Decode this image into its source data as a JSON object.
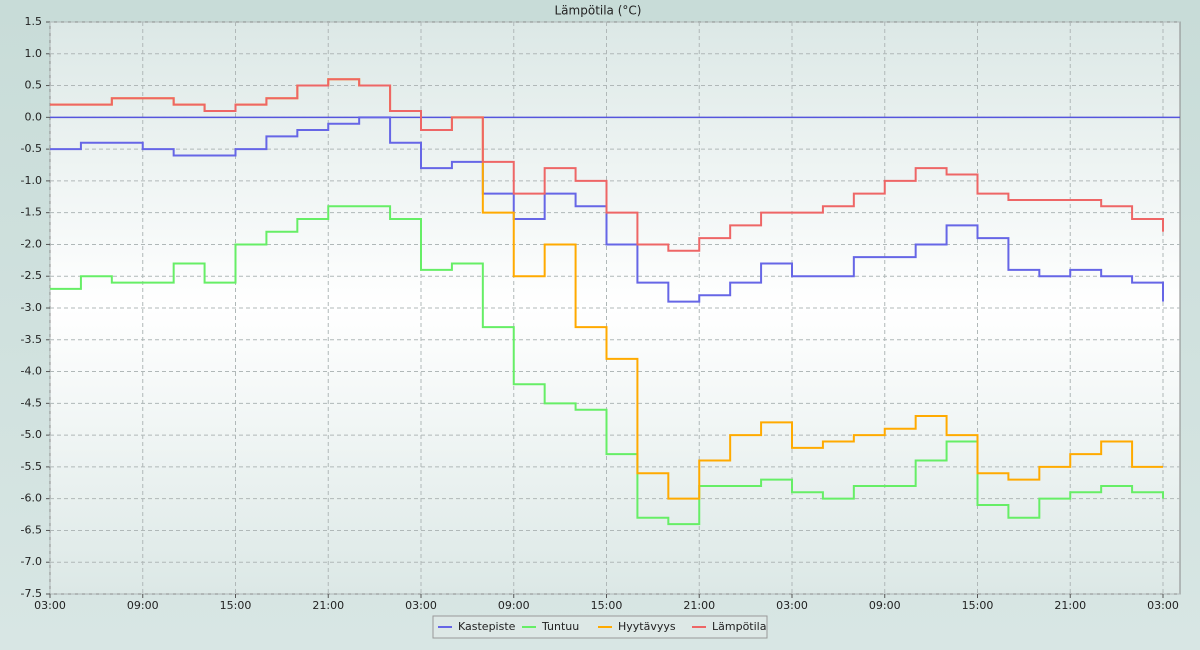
{
  "chart_data": {
    "type": "line",
    "step": true,
    "title": "Lämpötila (°C)",
    "x": [
      0,
      2,
      4,
      6,
      8,
      10,
      12,
      14,
      16,
      18,
      20,
      22,
      24,
      26,
      28,
      30,
      32,
      34,
      36,
      38,
      40,
      42,
      44,
      46,
      48,
      50,
      52,
      54,
      56,
      58,
      60,
      62,
      64,
      66,
      68,
      70,
      72
    ],
    "xlim": [
      0,
      73.1
    ],
    "xticks": [
      {
        "value": 0,
        "label": "03:00"
      },
      {
        "value": 6,
        "label": "09:00"
      },
      {
        "value": 12,
        "label": "15:00"
      },
      {
        "value": 18,
        "label": "21:00"
      },
      {
        "value": 24,
        "label": "03:00"
      },
      {
        "value": 30,
        "label": "09:00"
      },
      {
        "value": 36,
        "label": "15:00"
      },
      {
        "value": 42,
        "label": "21:00"
      },
      {
        "value": 48,
        "label": "03:00"
      },
      {
        "value": 54,
        "label": "09:00"
      },
      {
        "value": 60,
        "label": "15:00"
      },
      {
        "value": 66,
        "label": "21:00"
      },
      {
        "value": 72,
        "label": "03:00"
      }
    ],
    "ylim": [
      -7.5,
      1.5
    ],
    "yticks": [
      -7.5,
      {
        "value": -7,
        "label": "-7.0"
      },
      -6.5,
      {
        "value": -6,
        "label": "-6.0"
      },
      -5.5,
      {
        "value": -5,
        "label": "-5.0"
      },
      -4.5,
      {
        "value": -4,
        "label": "-4.0"
      },
      -3.5,
      {
        "value": -3,
        "label": "-3.0"
      },
      -2.5,
      {
        "value": -2,
        "label": "-2.0"
      },
      -1.5,
      {
        "value": -1,
        "label": "-1.0"
      },
      -0.5,
      {
        "value": 0,
        "label": "0.0"
      },
      0.5,
      {
        "value": 1,
        "label": "1.0"
      },
      1.5
    ],
    "grid": true,
    "legend": "bottom",
    "series": [
      {
        "name": "Kastepiste",
        "color": "#6666e6",
        "values": [
          -0.5,
          -0.4,
          -0.4,
          -0.5,
          -0.6,
          -0.6,
          -0.5,
          -0.3,
          -0.2,
          -0.1,
          0.0,
          -0.4,
          -0.8,
          -0.7,
          -1.2,
          -1.6,
          -1.2,
          -1.4,
          -2.0,
          -2.6,
          -2.9,
          -2.8,
          -2.6,
          -2.3,
          -2.5,
          -2.5,
          -2.2,
          -2.2,
          -2.0,
          -1.7,
          -1.9,
          -2.4,
          -2.5,
          -2.4,
          -2.5,
          -2.6,
          -2.9
        ]
      },
      {
        "name": "Tuntuu",
        "color": "#66ee66",
        "values": [
          -2.7,
          -2.5,
          -2.6,
          -2.6,
          -2.3,
          -2.6,
          -2.0,
          -1.8,
          -1.6,
          -1.4,
          -1.4,
          -1.6,
          -2.4,
          -2.3,
          -3.3,
          -4.2,
          -4.5,
          -4.6,
          -5.3,
          -6.3,
          -6.4,
          -5.8,
          -5.8,
          -5.7,
          -5.9,
          -6.0,
          -5.8,
          -5.8,
          -5.4,
          -5.1,
          -6.1,
          -6.3,
          -6.0,
          -5.9,
          -5.8,
          -5.9,
          -6.0
        ]
      },
      {
        "name": "Hyytävyys",
        "color": "#ffaa00",
        "values": [
          0.2,
          0.2,
          0.3,
          0.3,
          0.2,
          0.1,
          0.2,
          0.3,
          0.5,
          0.6,
          0.5,
          0.1,
          -0.2,
          0.0,
          -1.5,
          -2.5,
          -2.0,
          -3.3,
          -3.8,
          -5.6,
          -6.0,
          -5.4,
          -5.0,
          -4.8,
          -5.2,
          -5.1,
          -5.0,
          -4.9,
          -4.7,
          -5.0,
          -5.6,
          -5.7,
          -5.5,
          -5.3,
          -5.1,
          -5.5,
          -5.5
        ]
      },
      {
        "name": "Lämpötila",
        "color": "#ee6666",
        "values": [
          0.2,
          0.2,
          0.3,
          0.3,
          0.2,
          0.1,
          0.2,
          0.3,
          0.5,
          0.6,
          0.5,
          0.1,
          -0.2,
          0.0,
          -0.7,
          -1.2,
          -0.8,
          -1.0,
          -1.5,
          -2.0,
          -2.1,
          -1.9,
          -1.7,
          -1.5,
          -1.5,
          -1.4,
          -1.2,
          -1.0,
          -0.8,
          -0.9,
          -1.2,
          -1.3,
          -1.3,
          -1.3,
          -1.4,
          -1.6,
          -1.8
        ]
      }
    ]
  }
}
